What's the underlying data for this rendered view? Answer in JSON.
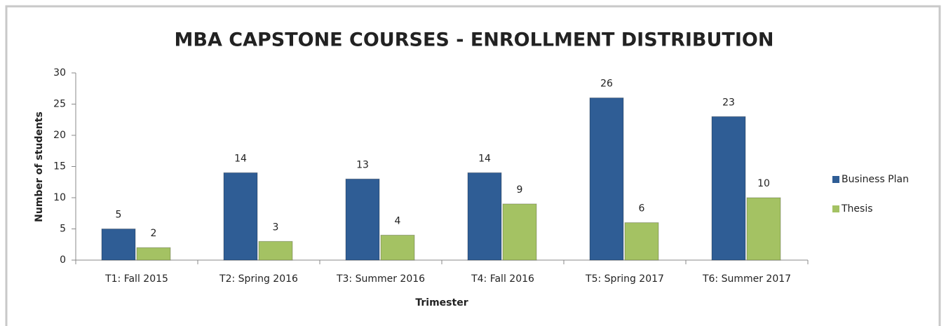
{
  "chart_data": {
    "type": "bar",
    "title": "MBA CAPSTONE COURSES - ENROLLMENT DISTRIBUTION",
    "x_label": "Trimester",
    "y_label": "Number of students",
    "categories": [
      "T1: Fall 2015",
      "T2: Spring 2016",
      "T3: Summer 2016",
      "T4: Fall 2016",
      "T5: Spring 2017",
      "T6: Summer 2017"
    ],
    "series": [
      {
        "name": "Business Plan",
        "color": "#2f5d95",
        "values": [
          5,
          14,
          13,
          14,
          26,
          23
        ]
      },
      {
        "name": "Thesis",
        "color": "#a4c263",
        "values": [
          2,
          3,
          4,
          9,
          6,
          10
        ]
      }
    ],
    "ylim": [
      0,
      30
    ],
    "yticks": [
      0,
      5,
      10,
      15,
      20,
      25,
      30
    ],
    "grid": false,
    "legend": "right"
  }
}
